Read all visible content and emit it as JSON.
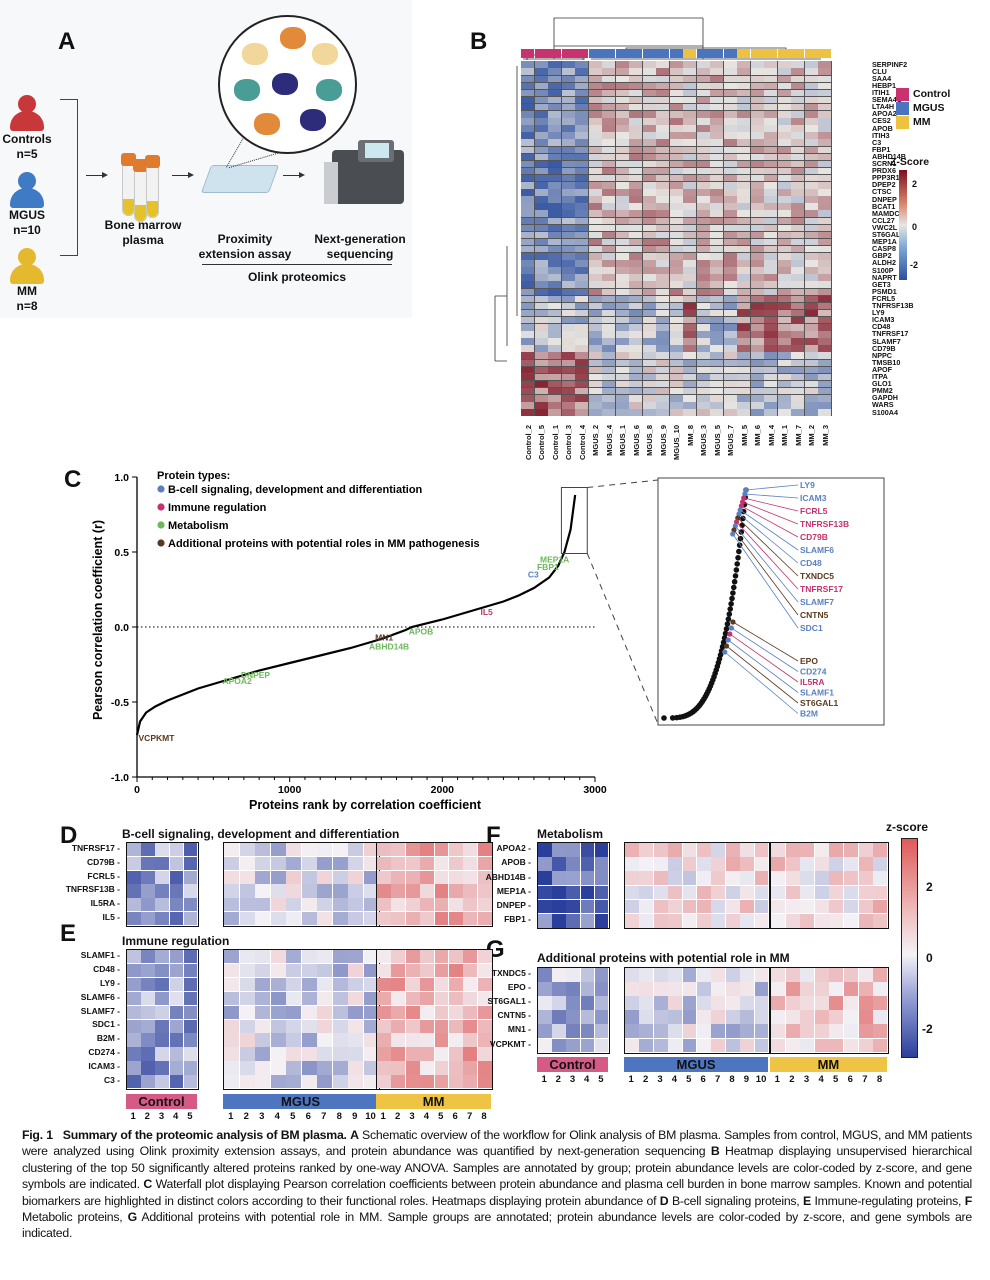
{
  "panel_labels": {
    "A": "A",
    "B": "B",
    "C": "C",
    "D": "D",
    "E": "E",
    "F": "F",
    "G": "G"
  },
  "panelA": {
    "groups": [
      {
        "name": "Controls",
        "n": "n=5",
        "color": "#c8383a"
      },
      {
        "name": "MGUS",
        "n": "n=10",
        "color": "#3f7ac4"
      },
      {
        "name": "MM",
        "n": "n=8",
        "color": "#e5b92e"
      }
    ],
    "step1": "Bone marrow plasma",
    "step2": "Proximity extension assay",
    "step3": "Next-generation sequencing",
    "platform": "Olink proteomics",
    "icons": [
      "person-icon",
      "blood-tube-icon",
      "well-plate-icon",
      "sequencer-icon",
      "antibody-protein-zoom-icon"
    ]
  },
  "panelB": {
    "genes": [
      "SERPINF2",
      "CLU",
      "SAA4",
      "HEBP1",
      "ITIH1",
      "SEMA4C",
      "LTA4H",
      "APOA2",
      "CES2",
      "APOB",
      "ITIH3",
      "C3",
      "FBP1",
      "ABHD14B",
      "SCRN1",
      "PRDX6",
      "PPP3R1",
      "DPEP2",
      "CTSC",
      "DNPEP",
      "BCAT1",
      "MAMDC2",
      "CCL27",
      "VWC2L",
      "ST6GAL1",
      "MEP1A",
      "CASP8",
      "GBP2",
      "ALDH2",
      "S100P",
      "NAPRT",
      "GET3",
      "PSMD1",
      "FCRL5",
      "TNFRSF13B",
      "LY9",
      "ICAM3",
      "CD48",
      "TNFRSF17",
      "SLAMF7",
      "CD79B",
      "NPPC",
      "TMSB10",
      "APOF",
      "ITPA",
      "GLO1",
      "PMM2",
      "GAPDH",
      "WARS",
      "S100A4"
    ],
    "samples": [
      "Control_2",
      "Control_5",
      "Control_1",
      "Control_3",
      "Control_4",
      "MGUS_2",
      "MGUS_4",
      "MGUS_1",
      "MGUS_6",
      "MGUS_8",
      "MGUS_9",
      "MGUS_10",
      "MM_8",
      "MGUS_3",
      "MGUS_5",
      "MGUS_7",
      "MM_5",
      "MM_6",
      "MM_4",
      "MM_1",
      "MM_7",
      "MM_2",
      "MM_3"
    ],
    "legend": [
      {
        "label": "Control",
        "color": "#c8326e"
      },
      {
        "label": "MGUS",
        "color": "#4a74c0"
      },
      {
        "label": "MM",
        "color": "#ecc240"
      }
    ],
    "colorbar": {
      "title": "Z-Score",
      "ticks": [
        "2",
        "0",
        "-2"
      ],
      "low": "#2c4f9e",
      "mid": "#e8e6e2",
      "high": "#7d1020"
    }
  },
  "chart_data": [
    {
      "type": "scatter",
      "panel": "C",
      "title": "",
      "xlabel": "Proteins rank by correlation coefficient",
      "ylabel": "Pearson correlation coefficient (r)",
      "xlim": [
        0,
        3000
      ],
      "ylim": [
        -1.0,
        1.0
      ],
      "xticks": [
        "0",
        "1000",
        "2000",
        "3000"
      ],
      "yticks": [
        "1.0",
        "0.5",
        "0.0",
        "-0.5",
        "-1.0"
      ],
      "reference_line": 0,
      "legend_title": "Protein types:",
      "legend": [
        {
          "label": "B-cell signaling, development and differentiation",
          "color": "#5b80c2"
        },
        {
          "label": "Immune regulation",
          "color": "#c4336f"
        },
        {
          "label": "Metabolism",
          "color": "#6db85b"
        },
        {
          "label": "Additional proteins with potential roles in MM pathogenesis",
          "color": "#5a3a1e"
        }
      ],
      "curve": {
        "x": [
          0,
          20,
          60,
          120,
          200,
          400,
          600,
          800,
          1000,
          1200,
          1400,
          1600,
          1760,
          1800,
          2000,
          2200,
          2400,
          2500,
          2600,
          2700,
          2760,
          2800,
          2840,
          2870
        ],
        "y": [
          -0.72,
          -0.63,
          -0.57,
          -0.53,
          -0.49,
          -0.41,
          -0.35,
          -0.29,
          -0.24,
          -0.19,
          -0.14,
          -0.08,
          -0.02,
          0.0,
          0.05,
          0.11,
          0.17,
          0.21,
          0.26,
          0.33,
          0.41,
          0.5,
          0.65,
          0.88
        ]
      },
      "annotations": [
        {
          "label": "VCPKMT",
          "x": 10,
          "y": -0.76,
          "group": 3
        },
        {
          "label": "APOA2",
          "x": 560,
          "y": -0.38,
          "group": 2
        },
        {
          "label": "DNPEP",
          "x": 680,
          "y": -0.34,
          "group": 2
        },
        {
          "label": "ABHD14B",
          "x": 1520,
          "y": -0.15,
          "group": 2
        },
        {
          "label": "MN1",
          "x": 1560,
          "y": -0.09,
          "group": 3
        },
        {
          "label": "APOB",
          "x": 1780,
          "y": -0.05,
          "group": 2
        },
        {
          "label": "IL5",
          "x": 2250,
          "y": 0.08,
          "group": 1
        },
        {
          "label": "C3",
          "x": 2560,
          "y": 0.33,
          "group": 0
        },
        {
          "label": "FBP1",
          "x": 2620,
          "y": 0.38,
          "group": 2
        },
        {
          "label": "MEP1A",
          "x": 2640,
          "y": 0.43,
          "group": 2
        }
      ],
      "inset_labels": [
        {
          "label": "LY9",
          "group": 0
        },
        {
          "label": "ICAM3",
          "group": 0
        },
        {
          "label": "FCRL5",
          "group": 1
        },
        {
          "label": "TNFRSF13B",
          "group": 1
        },
        {
          "label": "CD79B",
          "group": 1
        },
        {
          "label": "SLAMF6",
          "group": 0
        },
        {
          "label": "CD48",
          "group": 0
        },
        {
          "label": "TXNDC5",
          "group": 3
        },
        {
          "label": "TNFRSF17",
          "group": 1
        },
        {
          "label": "SLAMF7",
          "group": 0
        },
        {
          "label": "CNTN5",
          "group": 3
        },
        {
          "label": "SDC1",
          "group": 0
        },
        {
          "label": "EPO",
          "group": 3
        },
        {
          "label": "CD274",
          "group": 0
        },
        {
          "label": "IL5RA",
          "group": 1
        },
        {
          "label": "SLAMF1",
          "group": 0
        },
        {
          "label": "ST6GAL1",
          "group": 3
        },
        {
          "label": "B2M",
          "group": 0
        }
      ]
    }
  ],
  "small_heatmaps": {
    "D": {
      "title": "B-cell signaling, development and differentiation",
      "rows": [
        "TNFRSF17",
        "CD79B",
        "FCRL5",
        "TNFRSF13B",
        "IL5RA",
        "IL5"
      ],
      "trend": [
        -1.2,
        -0.3,
        1.0
      ]
    },
    "E": {
      "title": "Immune regulation",
      "rows": [
        "SLAMF1",
        "CD48",
        "LY9",
        "SLAMF6",
        "SLAMF7",
        "SDC1",
        "B2M",
        "CD274",
        "ICAM3",
        "C3"
      ],
      "trend": [
        -1.2,
        -0.4,
        1.0
      ]
    },
    "F": {
      "title": "Metabolism",
      "rows": [
        "APOA2",
        "APOB",
        "ABHD14B",
        "MEP1A",
        "DNPEP",
        "FBP1"
      ],
      "trend": [
        -2.0,
        0.3,
        0.4
      ]
    },
    "G": {
      "title": "Additional proteins with potential role in MM",
      "rows": [
        "TXNDC5",
        "EPO",
        "ST6GAL1",
        "CNTN5",
        "MN1",
        "VCPKMT"
      ],
      "trend": [
        -0.8,
        -0.3,
        0.8
      ]
    },
    "groups": [
      {
        "label": "Control",
        "color": "#d55a86",
        "n": 5
      },
      {
        "label": "MGUS",
        "color": "#4e75c0",
        "n": 10
      },
      {
        "label": "MM",
        "color": "#efc444",
        "n": 8
      }
    ],
    "numbers": {
      "Control": [
        "1",
        "2",
        "3",
        "4",
        "5"
      ],
      "MGUS": [
        "1",
        "2",
        "3",
        "4",
        "5",
        "6",
        "7",
        "8",
        "9",
        "10"
      ],
      "MM": [
        "1",
        "2",
        "3",
        "4",
        "5",
        "6",
        "7",
        "8"
      ]
    },
    "colorbar": {
      "title": "z-score",
      "ticks": [
        "2",
        "0",
        "-2"
      ]
    }
  },
  "caption": {
    "fig": "Fig. 1",
    "title": "Summary of the proteomic analysis of BM plasma.",
    "parts": [
      {
        "b": "A",
        "t": " Schematic overview of the workflow for Olink analysis of BM plasma. Samples from control, MGUS, and MM patients were analyzed using Olink proximity extension assays, and protein abundance was quantified by next-generation sequencing "
      },
      {
        "b": "B",
        "t": " Heatmap displaying unsupervised hierarchical clustering of the top 50 significantly altered proteins ranked by one-way ANOVA. Samples are annotated by group; protein abundance levels are color-coded by z-score, and gene symbols are indicated. "
      },
      {
        "b": "C",
        "t": " Waterfall plot displaying Pearson correlation coefficients between protein abundance and plasma cell burden in bone marrow samples. Known and potential biomarkers are highlighted in distinct colors according to their functional roles. Heatmaps displaying protein abundance of "
      },
      {
        "b": "D",
        "t": " B-cell signaling proteins, "
      },
      {
        "b": "E",
        "t": " Immune-regulating proteins, "
      },
      {
        "b": "F",
        "t": " Metabolic proteins, "
      },
      {
        "b": "G",
        "t": " Additional proteins with potential role in MM. Sample groups are annotated; protein abundance levels are color-coded by z-score, and gene symbols are indicated."
      }
    ]
  }
}
